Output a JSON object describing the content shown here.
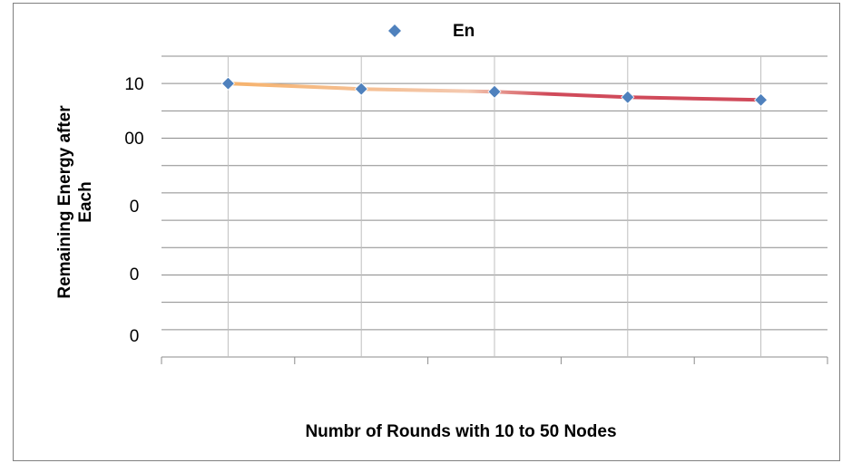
{
  "chart_data": {
    "type": "scatter",
    "title": "",
    "xlabel": "Numbr of Rounds with 10 to 50 Nodes",
    "ylabel": [
      "Remaining Energy after",
      "Each"
    ],
    "y_tick_labels": [
      "10",
      "00",
      "0",
      "0",
      "0"
    ],
    "legend": {
      "position": "top-center",
      "entries": [
        "En"
      ]
    },
    "grid": true,
    "colors": {
      "marker": "#4f81bd",
      "trend_start": "#f6b26b",
      "trend_end": "#d04a5a"
    },
    "series": [
      {
        "name": "En",
        "x": [
          1,
          2,
          3,
          4,
          5
        ],
        "y": [
          100,
          98,
          97,
          95,
          94
        ]
      }
    ],
    "xlim": [
      0.5,
      5.5
    ],
    "ylim": [
      0,
      110
    ]
  }
}
